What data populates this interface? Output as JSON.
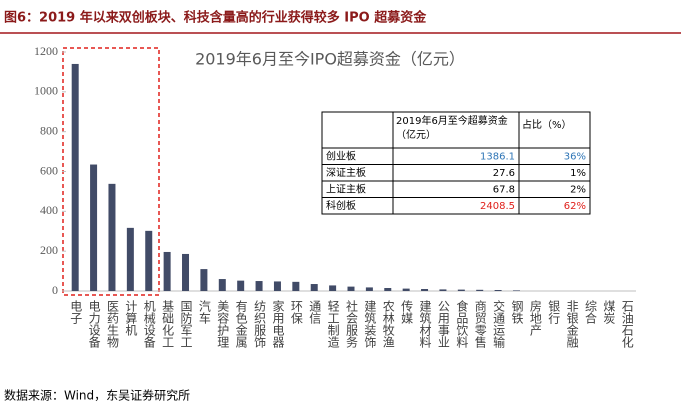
{
  "figure_title": "图6：2019 年以来双创板块、科技含量高的行业获得较多 IPO 超募资金",
  "source": "数据来源：Wind，东吴证券研究所",
  "chart_data": {
    "type": "bar",
    "title": "2019年6月至今IPO超募资金（亿元）",
    "categories": [
      "电子",
      "电力设备",
      "医药生物",
      "计算机",
      "机械设备",
      "基础化工",
      "国防军工",
      "汽车",
      "美容护理",
      "有色金属",
      "纺织服饰",
      "家用电器",
      "环保",
      "通信",
      "轻工制造",
      "社会服务",
      "建筑装饰",
      "农林牧渔",
      "传媒",
      "建筑材料",
      "公用事业",
      "食品饮料",
      "商贸零售",
      "交通运输",
      "钢铁",
      "房地产",
      "银行",
      "非银金融",
      "综合",
      "煤炭",
      "石油石化"
    ],
    "values": [
      1140,
      635,
      538,
      317,
      302,
      196,
      186,
      110,
      60,
      52,
      50,
      48,
      46,
      35,
      28,
      22,
      18,
      15,
      12,
      10,
      8,
      7,
      6,
      5,
      3,
      0,
      0,
      0,
      0,
      0,
      0
    ],
    "color": "#414b67",
    "ylim": [
      0,
      1200
    ],
    "yticks": [
      0,
      200,
      400,
      600,
      800,
      1000,
      1200
    ],
    "table": {
      "header": [
        "2019年6月至今超募资金（亿元）",
        "占比（%）"
      ],
      "rows": [
        [
          "创业板",
          "1386.1",
          "36%"
        ],
        [
          "深证主板",
          "27.6",
          "1%"
        ],
        [
          "上证主板",
          "67.8",
          "2%"
        ],
        [
          "科创板",
          "2408.5",
          "62%"
        ]
      ]
    }
  }
}
